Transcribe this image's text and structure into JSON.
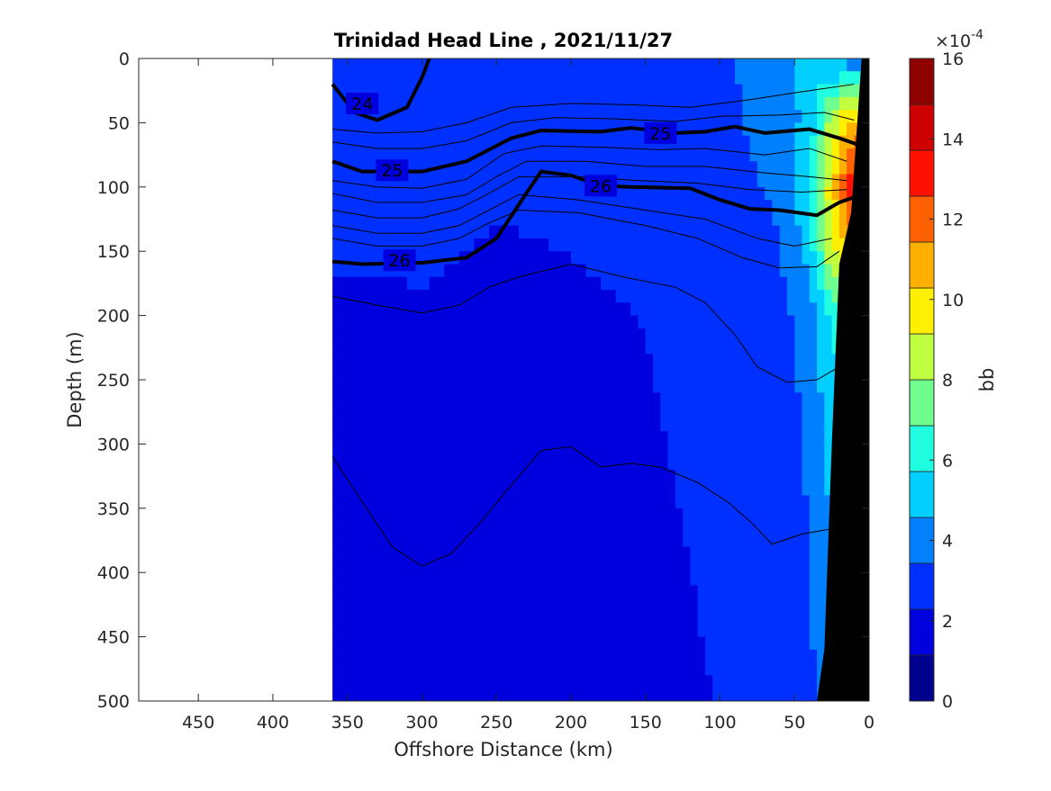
{
  "chart_data": {
    "type": "heatmap",
    "title": "Trinidad Head Line , 2021/11/27",
    "xlabel": "Offshore Distance (km)",
    "ylabel": "Depth (m)",
    "xlim": [
      490,
      0
    ],
    "ylim": [
      0,
      500
    ],
    "x_ticks": [
      450,
      400,
      350,
      300,
      250,
      200,
      150,
      100,
      50,
      0
    ],
    "y_ticks": [
      0,
      50,
      100,
      150,
      200,
      250,
      300,
      350,
      400,
      450,
      500
    ],
    "data_extent_km": [
      360,
      0
    ],
    "grid": false,
    "colorbar": {
      "label": "bb",
      "scale_exponent": "×10",
      "exponent_value": "-4",
      "range": [
        0,
        16
      ],
      "ticks": [
        0,
        2,
        4,
        6,
        8,
        10,
        12,
        14,
        16
      ],
      "colors": [
        "#00008f",
        "#0000df",
        "#0030ff",
        "#0080ff",
        "#00cfff",
        "#20ffdf",
        "#70ff8f",
        "#bfff40",
        "#ffef00",
        "#ffaf00",
        "#ff6000",
        "#ff1000",
        "#cf0000",
        "#8f0000"
      ]
    },
    "background_field": [
      {
        "x": [
          360,
          300,
          250,
          200,
          150,
          100,
          60,
          40,
          25,
          10
        ],
        "y": [
          0,
          0,
          0,
          0,
          0,
          0,
          0,
          0,
          0,
          0
        ]
      },
      {
        "depth_layers": [
          {
            "depth": 0,
            "values": [
              3.5,
              2.8,
              2.8,
              2.8,
              2.8,
              3.2,
              4.0,
              5.0,
              4.5,
              3.5
            ]
          },
          {
            "depth": 50,
            "values": [
              3.0,
              2.7,
              2.7,
              2.6,
              2.8,
              3.2,
              3.8,
              5.0,
              8.5,
              11.0
            ]
          },
          {
            "depth": 100,
            "values": [
              2.8,
              2.6,
              2.4,
              2.5,
              2.6,
              3.0,
              3.6,
              5.5,
              10.0,
              13.5
            ]
          },
          {
            "depth": 150,
            "values": [
              2.6,
              2.4,
              2.2,
              2.3,
              2.4,
              2.8,
              3.4,
              5.0,
              9.0,
              11.0
            ]
          },
          {
            "depth": 200,
            "values": [
              1.8,
              2.2,
              2.1,
              2.2,
              2.3,
              2.6,
              3.0,
              4.0,
              6.0,
              6.0
            ]
          },
          {
            "depth": 300,
            "values": [
              1.5,
              1.8,
              2.0,
              2.1,
              2.2,
              2.5,
              2.8,
              3.6,
              5.0,
              5.0
            ]
          },
          {
            "depth": 400,
            "values": [
              1.5,
              1.7,
              1.9,
              2.0,
              2.1,
              2.4,
              2.7,
              3.4,
              4.5,
              4.5
            ]
          },
          {
            "depth": 500,
            "values": [
              1.5,
              1.6,
              1.8,
              2.0,
              2.1,
              2.3,
              2.6,
              3.2,
              4.0,
              4.0
            ]
          }
        ]
      }
    ],
    "density_contours": [
      {
        "label": "24",
        "labels_at": [
          [
            340,
            35
          ]
        ],
        "points": [
          [
            360,
            20
          ],
          [
            345,
            42
          ],
          [
            330,
            48
          ],
          [
            310,
            38
          ],
          [
            300,
            15
          ],
          [
            295,
            0
          ]
        ]
      },
      {
        "label": "25",
        "labels_at": [
          [
            320,
            87
          ],
          [
            140,
            58
          ]
        ],
        "points": [
          [
            360,
            80
          ],
          [
            340,
            88
          ],
          [
            300,
            88
          ],
          [
            270,
            80
          ],
          [
            240,
            62
          ],
          [
            220,
            56
          ],
          [
            180,
            57
          ],
          [
            160,
            54
          ],
          [
            130,
            58
          ],
          [
            110,
            57
          ],
          [
            90,
            53
          ],
          [
            70,
            58
          ],
          [
            40,
            55
          ],
          [
            20,
            62
          ],
          [
            5,
            68
          ]
        ]
      },
      {
        "label": "26",
        "labels_at": [
          [
            315,
            157
          ],
          [
            180,
            99
          ]
        ],
        "points": [
          [
            360,
            158
          ],
          [
            340,
            160
          ],
          [
            300,
            159
          ],
          [
            270,
            155
          ],
          [
            250,
            140
          ],
          [
            230,
            105
          ],
          [
            220,
            88
          ],
          [
            200,
            91
          ],
          [
            180,
            99
          ],
          [
            160,
            100
          ],
          [
            120,
            101
          ],
          [
            100,
            110
          ],
          [
            80,
            117
          ],
          [
            60,
            118
          ],
          [
            35,
            122
          ],
          [
            20,
            112
          ],
          [
            10,
            108
          ]
        ]
      }
    ],
    "thin_contours": [
      [
        [
          360,
          55
        ],
        [
          330,
          58
        ],
        [
          300,
          57
        ],
        [
          270,
          50
        ],
        [
          240,
          38
        ],
        [
          200,
          35
        ],
        [
          160,
          36
        ],
        [
          120,
          38
        ],
        [
          80,
          32
        ],
        [
          40,
          25
        ],
        [
          10,
          20
        ]
      ],
      [
        [
          360,
          65
        ],
        [
          330,
          70
        ],
        [
          300,
          70
        ],
        [
          270,
          64
        ],
        [
          240,
          50
        ],
        [
          210,
          46
        ],
        [
          170,
          47
        ],
        [
          130,
          49
        ],
        [
          100,
          45
        ],
        [
          60,
          44
        ],
        [
          30,
          42
        ],
        [
          10,
          48
        ]
      ],
      [
        [
          360,
          95
        ],
        [
          330,
          100
        ],
        [
          300,
          101
        ],
        [
          270,
          94
        ],
        [
          245,
          74
        ],
        [
          220,
          68
        ],
        [
          180,
          69
        ],
        [
          140,
          71
        ],
        [
          110,
          70
        ],
        [
          70,
          75
        ],
        [
          40,
          70
        ],
        [
          15,
          80
        ]
      ],
      [
        [
          360,
          105
        ],
        [
          330,
          112
        ],
        [
          300,
          112
        ],
        [
          270,
          106
        ],
        [
          250,
          92
        ],
        [
          230,
          80
        ],
        [
          190,
          80
        ],
        [
          150,
          84
        ],
        [
          110,
          84
        ],
        [
          70,
          89
        ],
        [
          40,
          92
        ],
        [
          15,
          95
        ]
      ],
      [
        [
          360,
          118
        ],
        [
          330,
          124
        ],
        [
          300,
          124
        ],
        [
          275,
          117
        ],
        [
          255,
          105
        ],
        [
          235,
          92
        ],
        [
          195,
          92
        ],
        [
          155,
          95
        ],
        [
          115,
          97
        ],
        [
          80,
          102
        ],
        [
          45,
          104
        ],
        [
          15,
          102
        ]
      ],
      [
        [
          360,
          130
        ],
        [
          330,
          136
        ],
        [
          300,
          136
        ],
        [
          275,
          130
        ],
        [
          255,
          118
        ],
        [
          235,
          106
        ],
        [
          195,
          110
        ],
        [
          150,
          118
        ],
        [
          110,
          125
        ],
        [
          75,
          140
        ],
        [
          50,
          146
        ],
        [
          25,
          140
        ]
      ],
      [
        [
          360,
          140
        ],
        [
          330,
          146
        ],
        [
          300,
          146
        ],
        [
          275,
          140
        ],
        [
          255,
          128
        ],
        [
          235,
          118
        ],
        [
          195,
          120
        ],
        [
          150,
          130
        ],
        [
          115,
          140
        ],
        [
          85,
          155
        ],
        [
          60,
          163
        ],
        [
          35,
          162
        ],
        [
          20,
          150
        ]
      ],
      [
        [
          360,
          185
        ],
        [
          330,
          192
        ],
        [
          300,
          198
        ],
        [
          275,
          192
        ],
        [
          255,
          178
        ],
        [
          235,
          170
        ],
        [
          200,
          160
        ],
        [
          165,
          170
        ],
        [
          130,
          178
        ],
        [
          110,
          190
        ],
        [
          90,
          215
        ],
        [
          75,
          240
        ],
        [
          55,
          252
        ],
        [
          35,
          250
        ],
        [
          20,
          240
        ]
      ],
      [
        [
          360,
          310
        ],
        [
          340,
          345
        ],
        [
          320,
          380
        ],
        [
          300,
          395
        ],
        [
          280,
          385
        ],
        [
          260,
          360
        ],
        [
          240,
          332
        ],
        [
          220,
          305
        ],
        [
          200,
          302
        ],
        [
          180,
          318
        ],
        [
          160,
          315
        ],
        [
          140,
          318
        ],
        [
          115,
          330
        ],
        [
          95,
          345
        ],
        [
          80,
          360
        ],
        [
          65,
          378
        ],
        [
          45,
          370
        ],
        [
          25,
          366
        ]
      ]
    ],
    "bottom_profile_km_depth": [
      [
        0,
        0
      ],
      [
        5,
        0
      ],
      [
        12,
        120
      ],
      [
        20,
        160
      ],
      [
        25,
        300
      ],
      [
        30,
        460
      ],
      [
        35,
        500
      ],
      [
        0,
        500
      ]
    ]
  }
}
